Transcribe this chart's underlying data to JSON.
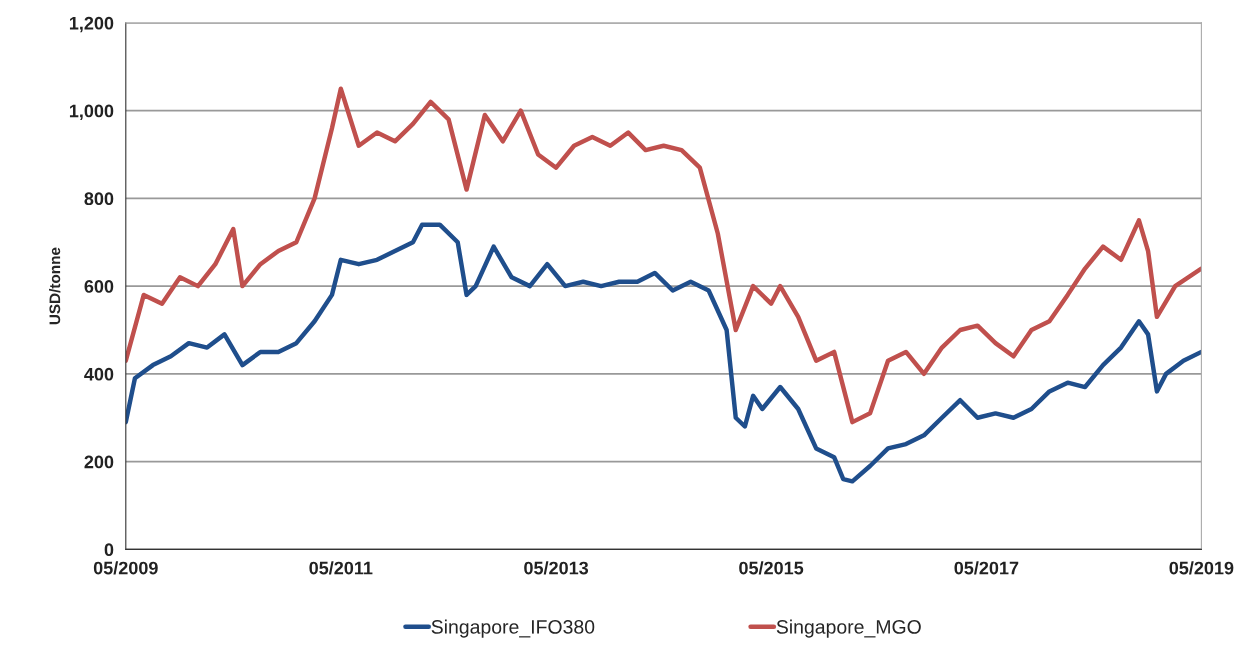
{
  "chart_data": {
    "type": "line",
    "ylabel": "USD/tonne",
    "ylim": [
      0,
      1200
    ],
    "yticks": [
      {
        "value": 0,
        "label": "0"
      },
      {
        "value": 200,
        "label": "200"
      },
      {
        "value": 400,
        "label": "400"
      },
      {
        "value": 600,
        "label": "600"
      },
      {
        "value": 800,
        "label": "800"
      },
      {
        "value": 1000,
        "label": "1,000"
      },
      {
        "value": 1200,
        "label": "1,200"
      }
    ],
    "xlim": [
      "2009-05",
      "2019-05"
    ],
    "xticks": [
      {
        "value": "2009-05",
        "label": "05/2009"
      },
      {
        "value": "2011-05",
        "label": "05/2011"
      },
      {
        "value": "2013-05",
        "label": "05/2013"
      },
      {
        "value": "2015-05",
        "label": "05/2015"
      },
      {
        "value": "2017-05",
        "label": "05/2017"
      },
      {
        "value": "2019-05",
        "label": "05/2019"
      }
    ],
    "grid": "y",
    "legend": "bottom",
    "series": [
      {
        "name": "Singapore_IFO380",
        "color": "#1f4e8c",
        "x": [
          "2009-05",
          "2009-06",
          "2009-08",
          "2009-10",
          "2009-12",
          "2010-02",
          "2010-04",
          "2010-06",
          "2010-08",
          "2010-10",
          "2010-12",
          "2011-02",
          "2011-04",
          "2011-05",
          "2011-07",
          "2011-09",
          "2011-11",
          "2012-01",
          "2012-02",
          "2012-04",
          "2012-06",
          "2012-07",
          "2012-08",
          "2012-10",
          "2012-12",
          "2013-02",
          "2013-04",
          "2013-06",
          "2013-08",
          "2013-10",
          "2013-12",
          "2014-02",
          "2014-04",
          "2014-06",
          "2014-08",
          "2014-10",
          "2014-12",
          "2015-01",
          "2015-02",
          "2015-03",
          "2015-04",
          "2015-06",
          "2015-08",
          "2015-10",
          "2015-12",
          "2016-01",
          "2016-02",
          "2016-04",
          "2016-06",
          "2016-08",
          "2016-10",
          "2016-12",
          "2017-02",
          "2017-04",
          "2017-06",
          "2017-08",
          "2017-10",
          "2017-12",
          "2018-02",
          "2018-04",
          "2018-06",
          "2018-08",
          "2018-10",
          "2018-11",
          "2018-12",
          "2019-01",
          "2019-03",
          "2019-05"
        ],
        "values": [
          290,
          390,
          420,
          440,
          470,
          460,
          490,
          420,
          450,
          450,
          470,
          520,
          580,
          660,
          650,
          660,
          680,
          700,
          740,
          740,
          700,
          580,
          600,
          690,
          620,
          600,
          650,
          600,
          610,
          600,
          610,
          610,
          630,
          590,
          610,
          590,
          500,
          300,
          280,
          350,
          320,
          370,
          320,
          230,
          210,
          160,
          155,
          190,
          230,
          240,
          260,
          300,
          340,
          300,
          310,
          300,
          320,
          360,
          380,
          370,
          420,
          460,
          520,
          490,
          360,
          400,
          430,
          450
        ]
      },
      {
        "name": "Singapore_MGO",
        "color": "#c0504d",
        "x": [
          "2009-05",
          "2009-07",
          "2009-09",
          "2009-11",
          "2010-01",
          "2010-03",
          "2010-05",
          "2010-06",
          "2010-08",
          "2010-10",
          "2010-12",
          "2011-02",
          "2011-04",
          "2011-05",
          "2011-07",
          "2011-09",
          "2011-11",
          "2012-01",
          "2012-03",
          "2012-05",
          "2012-07",
          "2012-09",
          "2012-11",
          "2013-01",
          "2013-03",
          "2013-05",
          "2013-07",
          "2013-09",
          "2013-11",
          "2014-01",
          "2014-03",
          "2014-05",
          "2014-07",
          "2014-09",
          "2014-11",
          "2015-01",
          "2015-03",
          "2015-05",
          "2015-06",
          "2015-08",
          "2015-10",
          "2015-12",
          "2016-02",
          "2016-04",
          "2016-06",
          "2016-08",
          "2016-10",
          "2016-12",
          "2017-02",
          "2017-04",
          "2017-06",
          "2017-08",
          "2017-10",
          "2017-12",
          "2018-02",
          "2018-04",
          "2018-06",
          "2018-08",
          "2018-10",
          "2018-11",
          "2018-12",
          "2019-02",
          "2019-05"
        ],
        "values": [
          430,
          580,
          560,
          620,
          600,
          650,
          730,
          600,
          650,
          680,
          700,
          800,
          960,
          1050,
          920,
          950,
          930,
          970,
          1020,
          980,
          820,
          990,
          930,
          1000,
          900,
          870,
          920,
          940,
          920,
          950,
          910,
          920,
          910,
          870,
          720,
          500,
          600,
          560,
          600,
          530,
          430,
          450,
          290,
          310,
          430,
          450,
          400,
          460,
          500,
          510,
          470,
          440,
          500,
          520,
          580,
          640,
          690,
          660,
          750,
          680,
          530,
          600,
          640
        ]
      }
    ]
  }
}
